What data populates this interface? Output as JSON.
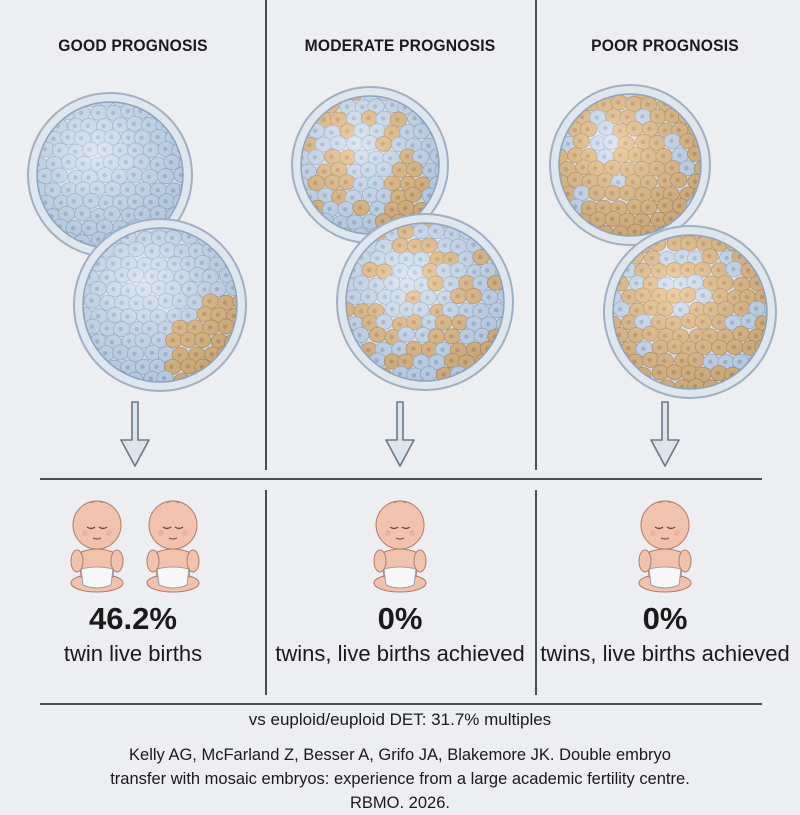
{
  "columns": [
    {
      "title": "GOOD PROGNOSIS",
      "value": "46.2%",
      "caption": "twin live births",
      "babies": 2
    },
    {
      "title": "MODERATE PROGNOSIS",
      "value": "0%",
      "caption": "twins, live births achieved",
      "babies": 1
    },
    {
      "title": "POOR PROGNOSIS",
      "value": "0%",
      "caption": "twins, live births achieved",
      "babies": 1
    }
  ],
  "comparison": "vs euploid/euploid DET: 31.7% multiples",
  "citation": "Kelly AG, McFarland Z, Besser A, Grifo JA, Blakemore JK. Double embryo transfer with mosaic embryos: experience from a large academic fertility centre. RBMO. 2026.",
  "colors": {
    "euploid_cell": "#bcd0e6",
    "aneuploid_cell": "#e0a04a",
    "background": "#eceef1",
    "divider": "#4a4d52"
  }
}
